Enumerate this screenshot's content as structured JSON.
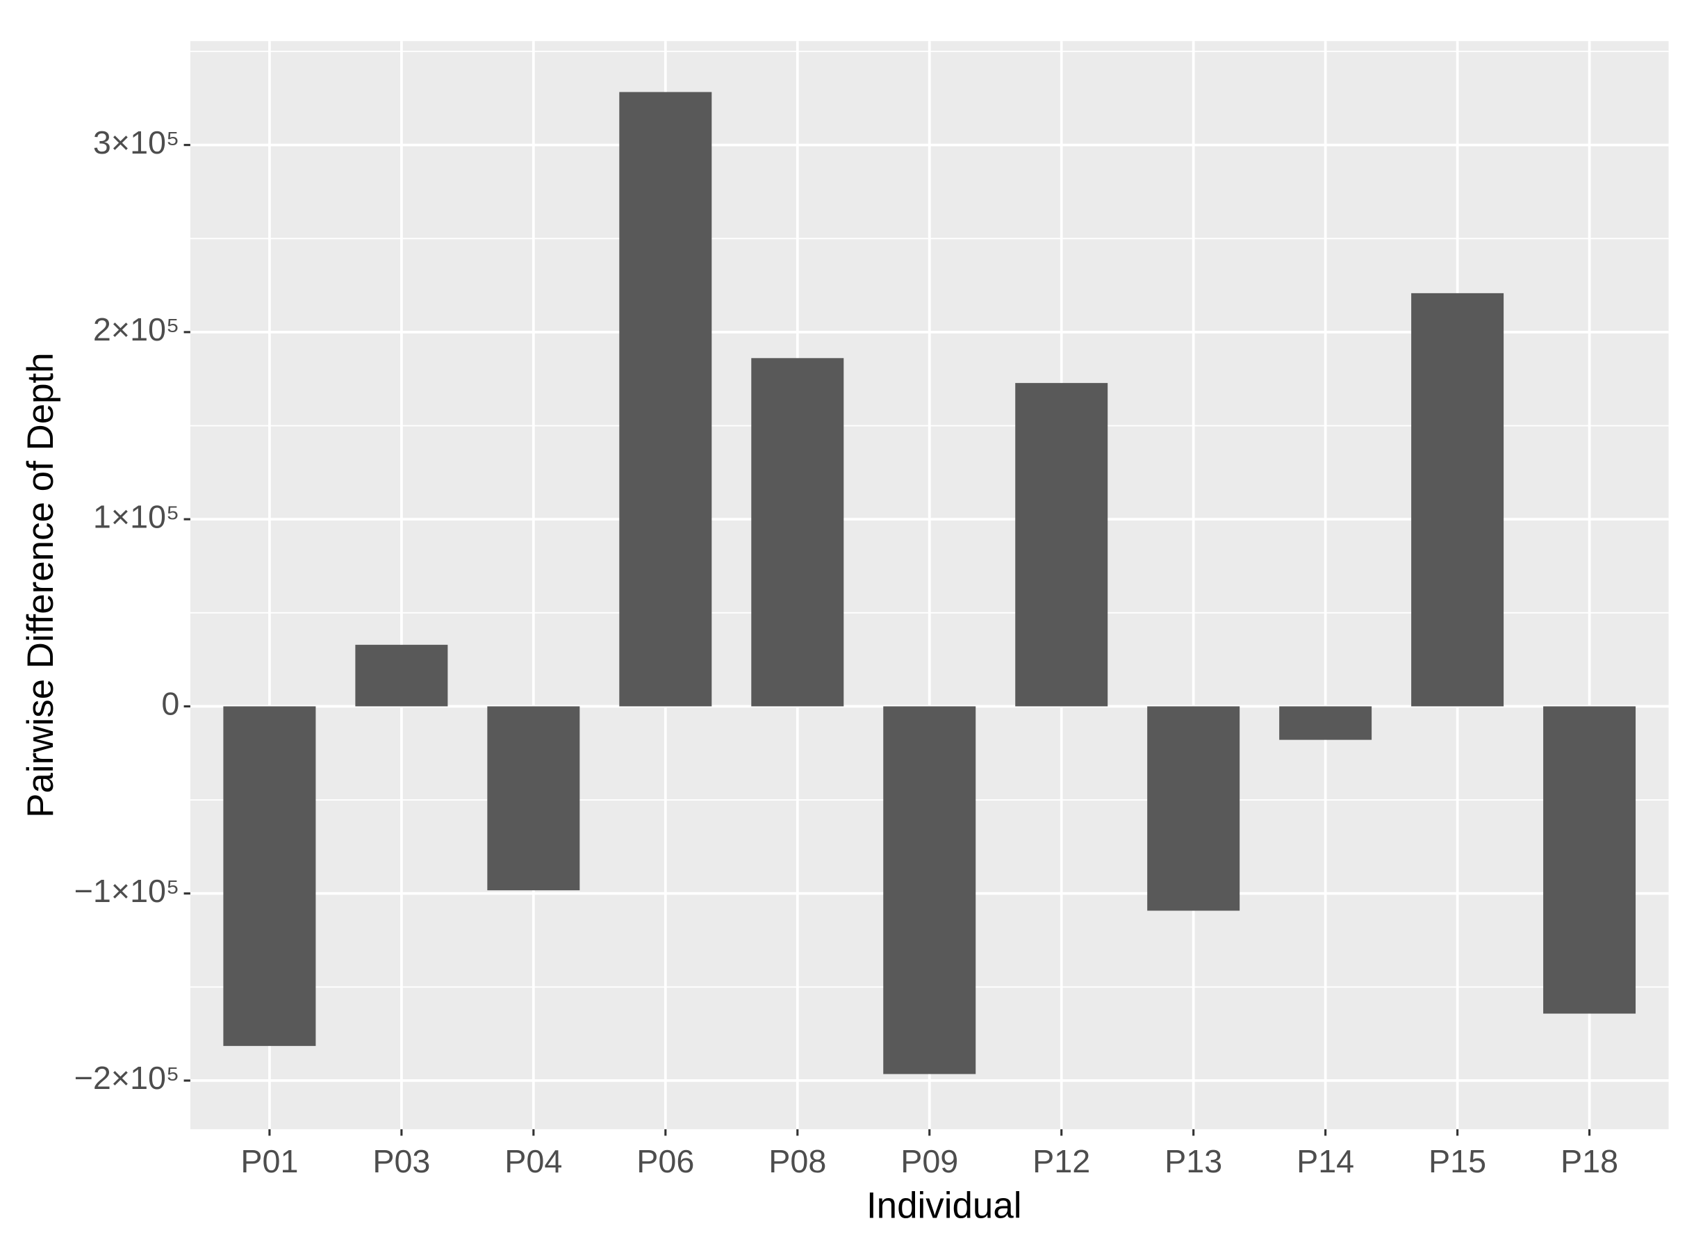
{
  "chart_data": {
    "type": "bar",
    "x_label": "Individual",
    "y_label": "Pairwise Difference of Depth",
    "categories": [
      "P01",
      "P03",
      "P04",
      "P06",
      "P08",
      "P09",
      "P12",
      "P13",
      "P14",
      "P15",
      "P18"
    ],
    "values": [
      -181500,
      32900,
      -98300,
      328300,
      186100,
      -196500,
      172800,
      -109200,
      -17900,
      220800,
      -164200
    ],
    "color": "#595959",
    "ylim": [
      -226000,
      355500
    ],
    "yticks": [
      {
        "value": -200000,
        "label": "−2×10⁵"
      },
      {
        "value": -100000,
        "label": "−1×10⁵"
      },
      0,
      {
        "value": 100000,
        "label": "1×10⁵"
      },
      {
        "value": 200000,
        "label": "2×10⁵"
      },
      {
        "value": 300000,
        "label": "3×10⁵"
      }
    ],
    "minor_yticks": [
      -150000,
      -50000,
      50000,
      150000,
      250000,
      350000
    ],
    "grid": true
  }
}
